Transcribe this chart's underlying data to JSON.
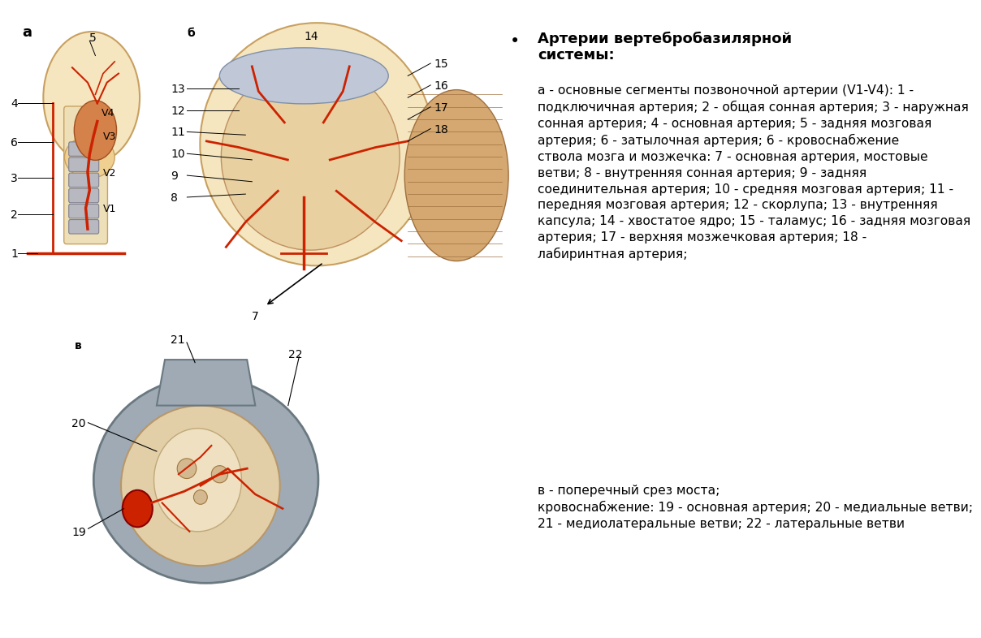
{
  "background_color": "#ffffff",
  "title_bold": "Артерии вертебробазилярной\nсистемы:",
  "bullet_text_a": "а - основные сегменты позвоночной артерии (V1-V4): 1 -\nподключичная артерия; 2 - общая сонная артерия; 3 - наружная\nсонная артерия; 4 - основная артерия; 5 - задняя мозговая\nартерия; 6 - затылочная артерия; 6 - кровоснабжение\nствола мозга и мозжечка: 7 - основная артерия, мостовые\nветви; 8 - внутренняя сонная артерия; 9 - задняя\nсоединительная артерия; 10 - средняя мозговая артерия; 11 -\nпередняя мозговая артерия; 12 - скорлупа; 13 - внутренняя\nкапсула; 14 - хвостатое ядро; 15 - таламус; 16 - задняя мозговая\nартерия; 17 - верхняя мозжечковая артерия; 18 -\nлабиринтная артерия;",
  "bullet_text_b": "в - поперечный срез моста;\nкровоснабжение: 19 - основная артерия; 20 - медиальные ветви;\n21 - медиолатеральные ветви; 22 - латеральные ветви",
  "text_color": "#000000",
  "title_fontsize": 13,
  "body_fontsize": 11.2,
  "label_fontsize": 13
}
